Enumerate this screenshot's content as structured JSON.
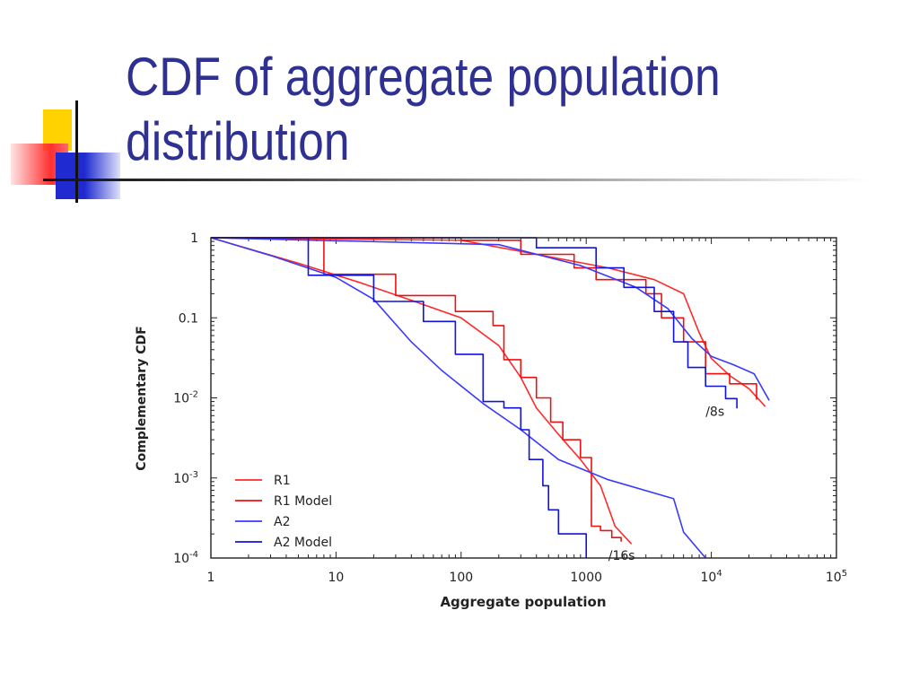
{
  "slide": {
    "title_line1": "CDF of aggregate population",
    "title_line2": "distribution",
    "title_color": "#2e3192",
    "decoration": [
      "yellow-square",
      "red-square",
      "blue-square",
      "cross-lines"
    ]
  },
  "chart_data": {
    "type": "line",
    "xlabel": "Aggregate population",
    "ylabel": "Complementary CDF",
    "xscale": "log",
    "yscale": "log",
    "xlim": [
      1,
      100000
    ],
    "ylim": [
      0.0001,
      1
    ],
    "x_ticks": [
      {
        "value": 1,
        "label": "1"
      },
      {
        "value": 10,
        "label": "10"
      },
      {
        "value": 100,
        "label": "100"
      },
      {
        "value": 1000,
        "label": "1000"
      },
      {
        "value": 10000,
        "base": "10",
        "exp": "4"
      },
      {
        "value": 100000,
        "base": "10",
        "exp": "5"
      }
    ],
    "y_ticks": [
      {
        "value": 1,
        "label": "1"
      },
      {
        "value": 0.1,
        "label": "0.1"
      },
      {
        "value": 0.01,
        "base": "10",
        "exp": "-2"
      },
      {
        "value": 0.001,
        "base": "10",
        "exp": "-3"
      },
      {
        "value": 0.0001,
        "base": "10",
        "exp": "-4"
      }
    ],
    "grid": false,
    "legend_position": "bottom-left",
    "legend": [
      {
        "name": "R1",
        "color": "#ff2a2a"
      },
      {
        "name": "R1 Model",
        "color": "#ee1111"
      },
      {
        "name": "A2",
        "color": "#3a3aff"
      },
      {
        "name": "A2 Model",
        "color": "#1212dd"
      }
    ],
    "annotations": [
      {
        "text": "/8s",
        "x": 9000,
        "y": 0.006
      },
      {
        "text": "/16s",
        "x": 1500,
        "y": 9.5e-05
      }
    ],
    "series": [
      {
        "group": "/8s",
        "name": "R1",
        "color": "#ff2a2a",
        "step": false,
        "points": [
          [
            1,
            1
          ],
          [
            100,
            0.93
          ],
          [
            400,
            0.62
          ],
          [
            1500,
            0.42
          ],
          [
            3500,
            0.3
          ],
          [
            6000,
            0.2
          ],
          [
            8000,
            0.065
          ],
          [
            10000,
            0.031
          ],
          [
            14000,
            0.019
          ],
          [
            20000,
            0.013
          ],
          [
            27000,
            0.0078
          ]
        ]
      },
      {
        "group": "/8s",
        "name": "R1 Model",
        "color": "#ee1111",
        "step": true,
        "points": [
          [
            1,
            1
          ],
          [
            100,
            0.93
          ],
          [
            300,
            0.62
          ],
          [
            800,
            0.42
          ],
          [
            1200,
            0.3
          ],
          [
            3000,
            0.2
          ],
          [
            4000,
            0.1
          ],
          [
            6000,
            0.05
          ],
          [
            9000,
            0.02
          ],
          [
            14000,
            0.015
          ],
          [
            23000,
            0.0095
          ]
        ]
      },
      {
        "group": "/8s",
        "name": "A2",
        "color": "#3a3aff",
        "step": false,
        "points": [
          [
            1,
            1
          ],
          [
            200,
            0.82
          ],
          [
            900,
            0.45
          ],
          [
            2500,
            0.24
          ],
          [
            4500,
            0.13
          ],
          [
            7000,
            0.055
          ],
          [
            10000,
            0.033
          ],
          [
            15000,
            0.026
          ],
          [
            22000,
            0.02
          ],
          [
            29000,
            0.0093
          ]
        ]
      },
      {
        "group": "/8s",
        "name": "A2 Model",
        "color": "#1212dd",
        "step": true,
        "points": [
          [
            1,
            1
          ],
          [
            400,
            0.75
          ],
          [
            1200,
            0.42
          ],
          [
            2000,
            0.24
          ],
          [
            3500,
            0.12
          ],
          [
            5000,
            0.05
          ],
          [
            6500,
            0.024
          ],
          [
            9000,
            0.014
          ],
          [
            13000,
            0.0098
          ],
          [
            16000,
            0.0074
          ]
        ]
      },
      {
        "group": "/16s",
        "name": "R1",
        "color": "#ff2a2a",
        "step": false,
        "points": [
          [
            1,
            1
          ],
          [
            5,
            0.48
          ],
          [
            15,
            0.28
          ],
          [
            40,
            0.165
          ],
          [
            100,
            0.1
          ],
          [
            200,
            0.045
          ],
          [
            300,
            0.018
          ],
          [
            400,
            0.0075
          ],
          [
            600,
            0.0035
          ],
          [
            900,
            0.0017
          ],
          [
            1300,
            0.0008
          ],
          [
            1700,
            0.00025
          ],
          [
            2300,
            0.00015
          ]
        ]
      },
      {
        "group": "/16s",
        "name": "R1 Model",
        "color": "#ee1111",
        "step": true,
        "points": [
          [
            1,
            1
          ],
          [
            8,
            0.35
          ],
          [
            30,
            0.19
          ],
          [
            90,
            0.12
          ],
          [
            180,
            0.08
          ],
          [
            220,
            0.03
          ],
          [
            300,
            0.018
          ],
          [
            400,
            0.01
          ],
          [
            520,
            0.005
          ],
          [
            650,
            0.003
          ],
          [
            900,
            0.0018
          ],
          [
            1100,
            0.0013
          ],
          [
            1100,
            0.00025
          ],
          [
            1300,
            0.00022
          ],
          [
            1600,
            0.00018
          ],
          [
            1900,
            0.00016
          ]
        ]
      },
      {
        "group": "/16s",
        "name": "A2",
        "color": "#3a3aff",
        "step": false,
        "points": [
          [
            1,
            1
          ],
          [
            3,
            0.6
          ],
          [
            10,
            0.32
          ],
          [
            20,
            0.17
          ],
          [
            40,
            0.05
          ],
          [
            70,
            0.022
          ],
          [
            150,
            0.0085
          ],
          [
            300,
            0.004
          ],
          [
            600,
            0.0017
          ],
          [
            1500,
            0.00095
          ],
          [
            5000,
            0.00055
          ],
          [
            6000,
            0.00021
          ],
          [
            9000,
            0.0001
          ]
        ]
      },
      {
        "group": "/16s",
        "name": "A2 Model",
        "color": "#1212dd",
        "step": true,
        "points": [
          [
            1,
            1
          ],
          [
            6,
            0.34
          ],
          [
            20,
            0.16
          ],
          [
            50,
            0.09
          ],
          [
            90,
            0.035
          ],
          [
            150,
            0.009
          ],
          [
            220,
            0.0075
          ],
          [
            300,
            0.004
          ],
          [
            350,
            0.0017
          ],
          [
            450,
            0.0008
          ],
          [
            500,
            0.0004
          ],
          [
            600,
            0.0002
          ],
          [
            1000,
            0.0001
          ]
        ]
      }
    ]
  }
}
